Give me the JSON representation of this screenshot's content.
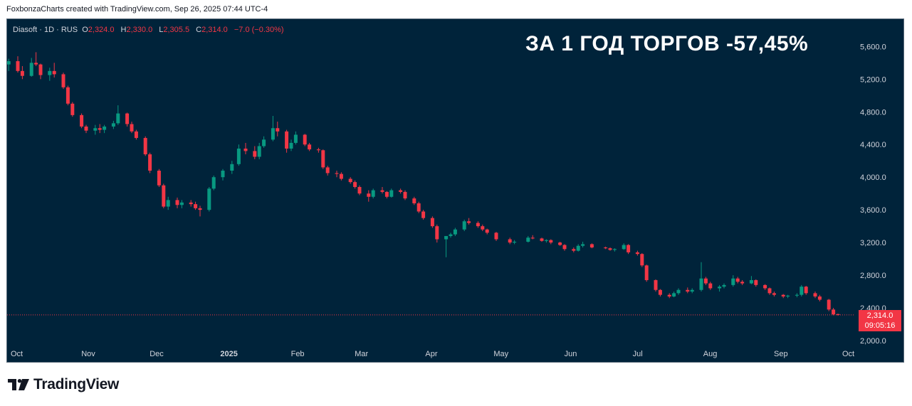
{
  "credit": "FoxbonzaCharts created with TradingView.com, Sep 26, 2025 07:44 UTC-4",
  "legend": {
    "symbol": "Diasoft · 1D · RUS",
    "o_label": "O",
    "o_value": "2,324.0",
    "h_label": "H",
    "h_value": "2,330.0",
    "l_label": "L",
    "l_value": "2,305.5",
    "c_label": "C",
    "c_value": "2,314.0",
    "change": "−7.0 (−0.30%)"
  },
  "headline": "ЗА 1 ГОД ТОРГОВ -57,45%",
  "last_price": {
    "price": "2,314.0",
    "countdown": "09:05:16"
  },
  "logo_text": "TradingView",
  "colors": {
    "background": "#00233a",
    "up": "#089981",
    "down": "#f23645",
    "axis_text": "#d1d4dc",
    "last_line": "#f23645"
  },
  "chart_data": {
    "type": "candlestick",
    "ylim": [
      2000,
      5700
    ],
    "y_ticks": [
      "5,600.0",
      "5,200.0",
      "4,800.0",
      "4,400.0",
      "4,000.0",
      "3,600.0",
      "3,200.0",
      "2,800.0",
      "2,400.0",
      "2,000.0"
    ],
    "y_tick_values": [
      5600,
      5200,
      4800,
      4400,
      4000,
      3600,
      3200,
      2800,
      2400,
      2000
    ],
    "x_ticks": [
      "Oct",
      "Nov",
      "Dec",
      "2025",
      "Feb",
      "Mar",
      "Apr",
      "May",
      "Jun",
      "Jul",
      "Aug",
      "Sep",
      "Oct"
    ],
    "x_tick_dates": [
      "2024-10-01",
      "2024-11-01",
      "2024-12-01",
      "2025-01-01",
      "2025-02-01",
      "2025-03-01",
      "2025-04-01",
      "2025-05-01",
      "2025-06-01",
      "2025-07-01",
      "2025-08-01",
      "2025-09-01",
      "2025-10-01"
    ],
    "last_close": 2314.0,
    "series": [
      {
        "values": [
          [
            "2024-09-27",
            5380,
            5450,
            5300,
            5420
          ],
          [
            "2024-10-01",
            5420,
            5480,
            5280,
            5300
          ],
          [
            "2024-10-03",
            5300,
            5360,
            5200,
            5240
          ],
          [
            "2024-10-07",
            5240,
            5460,
            5230,
            5400
          ],
          [
            "2024-10-09",
            5400,
            5530,
            5360,
            5380
          ],
          [
            "2024-10-11",
            5380,
            5390,
            5200,
            5250
          ],
          [
            "2024-10-15",
            5250,
            5340,
            5180,
            5300
          ],
          [
            "2024-10-17",
            5300,
            5400,
            5220,
            5260
          ],
          [
            "2024-10-21",
            5260,
            5280,
            5080,
            5100
          ],
          [
            "2024-10-23",
            5100,
            5120,
            4880,
            4900
          ],
          [
            "2024-10-25",
            4900,
            4920,
            4740,
            4760
          ],
          [
            "2024-10-29",
            4760,
            4780,
            4600,
            4620
          ],
          [
            "2024-10-31",
            4620,
            4640,
            4540,
            4570
          ],
          [
            "2024-11-04",
            4570,
            4640,
            4520,
            4600
          ],
          [
            "2024-11-06",
            4600,
            4650,
            4540,
            4580
          ],
          [
            "2024-11-08",
            4580,
            4640,
            4540,
            4620
          ],
          [
            "2024-11-12",
            4620,
            4690,
            4590,
            4660
          ],
          [
            "2024-11-14",
            4660,
            4880,
            4640,
            4780
          ],
          [
            "2024-11-18",
            4780,
            4790,
            4620,
            4650
          ],
          [
            "2024-11-20",
            4650,
            4680,
            4540,
            4560
          ],
          [
            "2024-11-22",
            4560,
            4580,
            4460,
            4480
          ],
          [
            "2024-11-26",
            4480,
            4500,
            4260,
            4280
          ],
          [
            "2024-11-28",
            4280,
            4300,
            4050,
            4080
          ],
          [
            "2024-12-02",
            4080,
            4100,
            3880,
            3900
          ],
          [
            "2024-12-04",
            3900,
            3920,
            3620,
            3640
          ],
          [
            "2024-12-06",
            3640,
            3760,
            3600,
            3720
          ],
          [
            "2024-12-10",
            3720,
            3750,
            3620,
            3660
          ],
          [
            "2024-12-12",
            3660,
            3720,
            3620,
            3690
          ],
          [
            "2024-12-16",
            3690,
            3720,
            3640,
            3670
          ],
          [
            "2024-12-18",
            3670,
            3700,
            3600,
            3620
          ],
          [
            "2024-12-20",
            3620,
            3650,
            3520,
            3600
          ],
          [
            "2024-12-24",
            3600,
            3880,
            3580,
            3860
          ],
          [
            "2024-12-26",
            3860,
            4020,
            3840,
            4000
          ],
          [
            "2024-12-30",
            4000,
            4100,
            3960,
            4080
          ],
          [
            "2025-01-03",
            4080,
            4200,
            4040,
            4160
          ],
          [
            "2025-01-06",
            4160,
            4400,
            4140,
            4350
          ],
          [
            "2025-01-09",
            4350,
            4420,
            4280,
            4320
          ],
          [
            "2025-01-13",
            4320,
            4380,
            4220,
            4250
          ],
          [
            "2025-01-15",
            4250,
            4420,
            4220,
            4380
          ],
          [
            "2025-01-17",
            4380,
            4500,
            4360,
            4460
          ],
          [
            "2025-01-21",
            4460,
            4750,
            4440,
            4600
          ],
          [
            "2025-01-23",
            4600,
            4680,
            4500,
            4560
          ],
          [
            "2025-01-27",
            4560,
            4580,
            4300,
            4350
          ],
          [
            "2025-01-29",
            4350,
            4460,
            4320,
            4420
          ],
          [
            "2025-01-31",
            4420,
            4560,
            4400,
            4520
          ],
          [
            "2025-02-04",
            4520,
            4530,
            4380,
            4400
          ],
          [
            "2025-02-06",
            4400,
            4420,
            4320,
            4340
          ],
          [
            "2025-02-10",
            4340,
            4360,
            4300,
            4330
          ],
          [
            "2025-02-12",
            4330,
            4340,
            4100,
            4120
          ],
          [
            "2025-02-14",
            4120,
            4140,
            4020,
            4050
          ],
          [
            "2025-02-18",
            4050,
            4080,
            4000,
            4040
          ],
          [
            "2025-02-20",
            4040,
            4060,
            3960,
            3980
          ],
          [
            "2025-02-24",
            3980,
            4000,
            3920,
            3940
          ],
          [
            "2025-02-26",
            3940,
            3960,
            3860,
            3880
          ],
          [
            "2025-02-28",
            3880,
            3900,
            3780,
            3800
          ],
          [
            "2025-03-04",
            3800,
            3840,
            3700,
            3760
          ],
          [
            "2025-03-06",
            3760,
            3860,
            3740,
            3840
          ],
          [
            "2025-03-10",
            3840,
            3880,
            3800,
            3820
          ],
          [
            "2025-03-12",
            3820,
            3830,
            3740,
            3760
          ],
          [
            "2025-03-14",
            3760,
            3860,
            3750,
            3840
          ],
          [
            "2025-03-18",
            3840,
            3860,
            3800,
            3820
          ],
          [
            "2025-03-20",
            3820,
            3840,
            3720,
            3740
          ],
          [
            "2025-03-24",
            3740,
            3760,
            3660,
            3680
          ],
          [
            "2025-03-26",
            3680,
            3700,
            3560,
            3580
          ],
          [
            "2025-03-28",
            3580,
            3600,
            3480,
            3500
          ],
          [
            "2025-04-01",
            3500,
            3520,
            3380,
            3400
          ],
          [
            "2025-04-03",
            3400,
            3420,
            3200,
            3240
          ],
          [
            "2025-04-07",
            3240,
            3260,
            3020,
            3280
          ],
          [
            "2025-04-09",
            3280,
            3320,
            3260,
            3300
          ],
          [
            "2025-04-11",
            3300,
            3380,
            3280,
            3360
          ],
          [
            "2025-04-15",
            3360,
            3480,
            3340,
            3460
          ],
          [
            "2025-04-17",
            3460,
            3500,
            3420,
            3440
          ],
          [
            "2025-04-21",
            3440,
            3460,
            3380,
            3400
          ],
          [
            "2025-04-23",
            3400,
            3420,
            3340,
            3360
          ],
          [
            "2025-04-25",
            3360,
            3370,
            3300,
            3320
          ],
          [
            "2025-04-29",
            3320,
            3330,
            3220,
            3240
          ],
          [
            "2025-05-05",
            3240,
            3260,
            3180,
            3200
          ],
          [
            "2025-05-07",
            3200,
            3230,
            3180,
            3210
          ],
          [
            "2025-05-13",
            3210,
            3280,
            3200,
            3260
          ],
          [
            "2025-05-15",
            3260,
            3290,
            3240,
            3250
          ],
          [
            "2025-05-19",
            3250,
            3260,
            3210,
            3220
          ],
          [
            "2025-05-21",
            3220,
            3240,
            3200,
            3230
          ],
          [
            "2025-05-23",
            3230,
            3240,
            3180,
            3200
          ],
          [
            "2025-05-27",
            3200,
            3210,
            3160,
            3170
          ],
          [
            "2025-05-29",
            3170,
            3180,
            3100,
            3120
          ],
          [
            "2025-06-02",
            3120,
            3140,
            3080,
            3100
          ],
          [
            "2025-06-04",
            3100,
            3180,
            3090,
            3160
          ],
          [
            "2025-06-06",
            3160,
            3210,
            3140,
            3180
          ],
          [
            "2025-06-10",
            3180,
            3190,
            3130,
            3140
          ],
          [
            "2025-06-16",
            3140,
            3150,
            3120,
            3130
          ],
          [
            "2025-06-18",
            3130,
            3140,
            3100,
            3110
          ],
          [
            "2025-06-20",
            3110,
            3130,
            3090,
            3120
          ],
          [
            "2025-06-24",
            3120,
            3190,
            3110,
            3170
          ],
          [
            "2025-06-26",
            3170,
            3180,
            3060,
            3080
          ],
          [
            "2025-06-30",
            3080,
            3100,
            3040,
            3060
          ],
          [
            "2025-07-02",
            3060,
            3070,
            2900,
            2920
          ],
          [
            "2025-07-04",
            2920,
            2930,
            2720,
            2740
          ],
          [
            "2025-07-08",
            2740,
            2750,
            2600,
            2620
          ],
          [
            "2025-07-10",
            2620,
            2630,
            2540,
            2560
          ],
          [
            "2025-07-14",
            2560,
            2580,
            2520,
            2540
          ],
          [
            "2025-07-16",
            2540,
            2600,
            2530,
            2580
          ],
          [
            "2025-07-18",
            2580,
            2640,
            2560,
            2620
          ],
          [
            "2025-07-22",
            2620,
            2650,
            2580,
            2600
          ],
          [
            "2025-07-24",
            2600,
            2640,
            2580,
            2620
          ],
          [
            "2025-07-28",
            2620,
            2960,
            2600,
            2760
          ],
          [
            "2025-07-30",
            2760,
            2780,
            2680,
            2700
          ],
          [
            "2025-08-01",
            2700,
            2720,
            2620,
            2640
          ],
          [
            "2025-08-05",
            2640,
            2680,
            2600,
            2660
          ],
          [
            "2025-08-07",
            2660,
            2700,
            2640,
            2680
          ],
          [
            "2025-08-11",
            2680,
            2800,
            2660,
            2760
          ],
          [
            "2025-08-13",
            2760,
            2780,
            2700,
            2720
          ],
          [
            "2025-08-15",
            2720,
            2740,
            2680,
            2700
          ],
          [
            "2025-08-19",
            2700,
            2790,
            2690,
            2740
          ],
          [
            "2025-08-21",
            2740,
            2750,
            2660,
            2680
          ],
          [
            "2025-08-25",
            2680,
            2690,
            2620,
            2640
          ],
          [
            "2025-08-27",
            2640,
            2650,
            2560,
            2580
          ],
          [
            "2025-08-29",
            2580,
            2600,
            2540,
            2560
          ],
          [
            "2025-09-02",
            2560,
            2570,
            2520,
            2540
          ],
          [
            "2025-09-04",
            2540,
            2560,
            2520,
            2550
          ],
          [
            "2025-09-08",
            2550,
            2580,
            2530,
            2560
          ],
          [
            "2025-09-10",
            2560,
            2680,
            2540,
            2660
          ],
          [
            "2025-09-12",
            2660,
            2670,
            2560,
            2580
          ],
          [
            "2025-09-16",
            2580,
            2600,
            2520,
            2540
          ],
          [
            "2025-09-18",
            2540,
            2560,
            2480,
            2500
          ],
          [
            "2025-09-22",
            2500,
            2510,
            2360,
            2380
          ],
          [
            "2025-09-24",
            2380,
            2400,
            2310,
            2321
          ],
          [
            "2025-09-26",
            2324,
            2330,
            2305.5,
            2314
          ]
        ]
      }
    ]
  }
}
